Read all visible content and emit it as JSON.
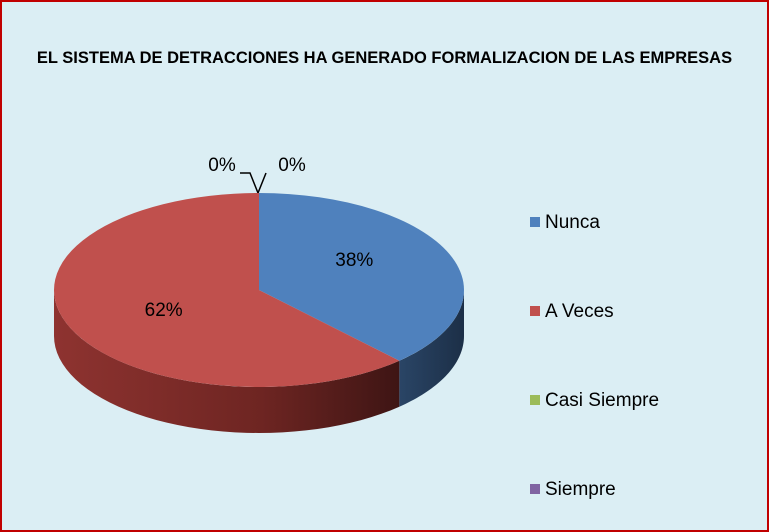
{
  "chart_data": {
    "type": "pie3d",
    "title": "EL SISTEMA DE DETRACCIONES HA GENERADO FORMALIZACION DE LAS EMPRESAS",
    "categories": [
      "Nunca",
      "A Veces",
      "Casi Siempre",
      "Siempre"
    ],
    "values": [
      38,
      62,
      0,
      0
    ],
    "value_labels": [
      "38%",
      "62%",
      "0%",
      "0%"
    ],
    "colors": [
      "#4f81bd",
      "#c0504d",
      "#9bbb59",
      "#8064a2"
    ],
    "legend": "right"
  }
}
